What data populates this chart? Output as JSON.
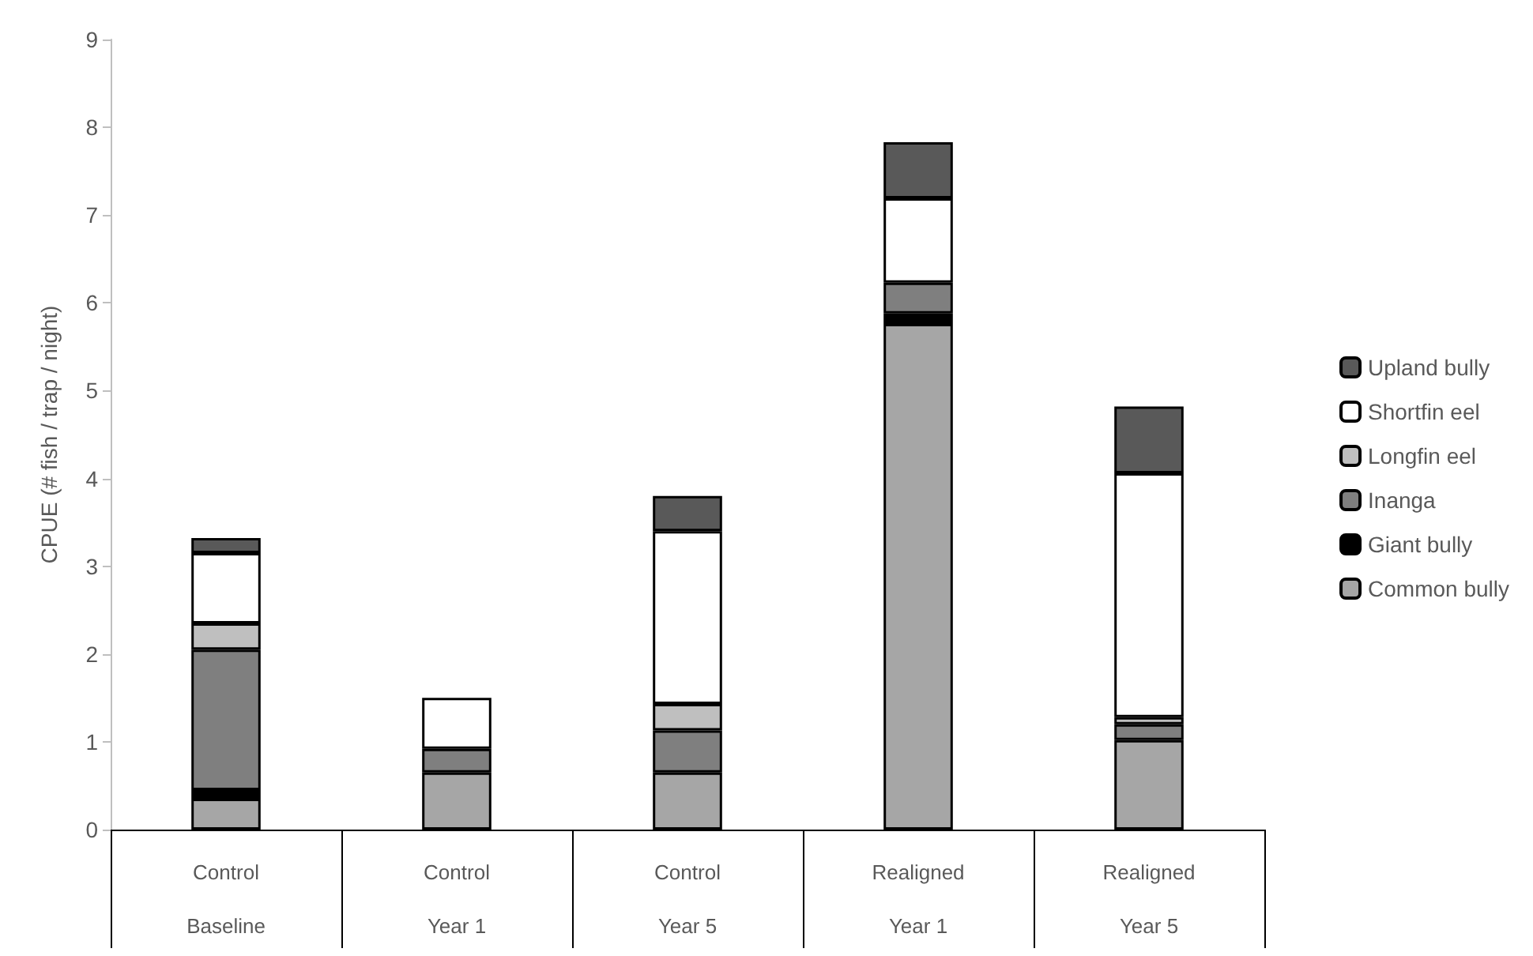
{
  "chart_data": {
    "type": "bar",
    "stacked": true,
    "ylabel": "CPUE (# fish / trap / night)",
    "categories": [
      "Control\nBaseline",
      "Control\nYear 1",
      "Control\nYear 5",
      "Realigned\nYear 1",
      "Realigned\nYear 5"
    ],
    "series": [
      {
        "name": "Common bully",
        "color": "#a6a6a6",
        "values": [
          0.35,
          0.65,
          0.65,
          5.76,
          1.02
        ]
      },
      {
        "name": "Giant bully",
        "color": "#000000",
        "values": [
          0.1,
          0,
          0,
          0.12,
          0
        ]
      },
      {
        "name": "Inanga",
        "color": "#7f7f7f",
        "values": [
          1.6,
          0.27,
          0.48,
          0.35,
          0.18
        ]
      },
      {
        "name": "Longfin eel",
        "color": "#bfbfbf",
        "values": [
          0.3,
          0,
          0.3,
          0,
          0.08
        ]
      },
      {
        "name": "Shortfin eel",
        "color": "#ffffff",
        "values": [
          0.8,
          0.58,
          1.97,
          0.96,
          2.78
        ]
      },
      {
        "name": "Upland bully",
        "color": "#595959",
        "values": [
          0.17,
          0,
          0.4,
          0.64,
          0.76
        ]
      }
    ],
    "ylim": [
      0,
      9
    ],
    "yticks": [
      0,
      1,
      2,
      3,
      4,
      5,
      6,
      7,
      8,
      9
    ],
    "grid": false,
    "legend": "right"
  }
}
